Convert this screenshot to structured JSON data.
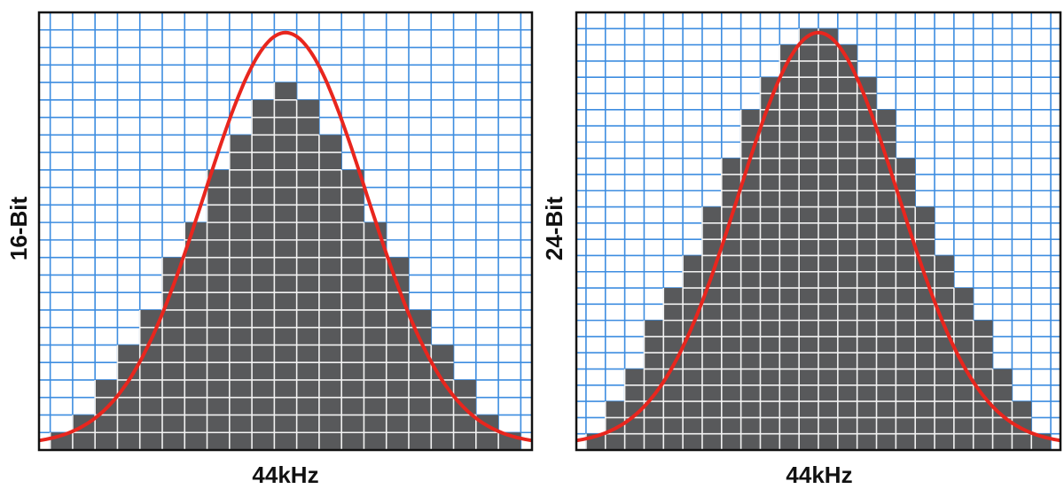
{
  "colors": {
    "grid": "#3d8de0",
    "steps": "#58595b",
    "cell_lines": "#f2f2f2",
    "curve": "#e8261e",
    "frame": "#111111",
    "background": "#ffffff"
  },
  "panels": [
    {
      "id": "panel-16",
      "ylabel": "16-Bit",
      "xlabel": "44kHz",
      "step_heights": [
        1,
        2,
        4,
        6,
        8,
        11,
        13,
        16,
        18,
        20,
        21,
        20,
        18,
        16,
        13,
        11,
        8,
        6,
        4,
        2,
        1
      ],
      "vertical_divisions": 25,
      "curve_peak_fraction": 0.97
    },
    {
      "id": "panel-24",
      "ylabel": "24-Bit",
      "xlabel": "44kHz",
      "step_heights": [
        1,
        3,
        5,
        8,
        10,
        12,
        15,
        18,
        21,
        23,
        25,
        26,
        26,
        25,
        23,
        21,
        18,
        15,
        12,
        10,
        8,
        5,
        3,
        1
      ],
      "vertical_divisions": 27,
      "curve_peak_fraction": 0.97
    }
  ]
}
